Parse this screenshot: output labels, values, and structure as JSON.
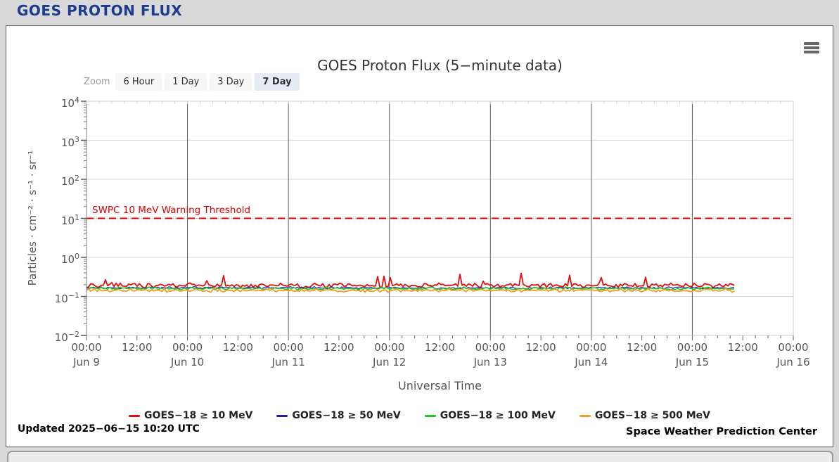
{
  "page": {
    "header_title": "GOES PROTON FLUX",
    "header_color": "#1c3d8f"
  },
  "toolbar": {
    "zoom_label": "Zoom",
    "zoom_buttons": [
      {
        "label": "6 Hour",
        "selected": false
      },
      {
        "label": "1 Day",
        "selected": false
      },
      {
        "label": "3 Day",
        "selected": false
      },
      {
        "label": "7 Day",
        "selected": true
      }
    ],
    "menu_icon": "hamburger-export-menu"
  },
  "chart_data": {
    "type": "line",
    "title": "GOES Proton Flux (5−minute data)",
    "xlabel": "Universal Time",
    "ylabel": "Particles · cm⁻² · s⁻¹ · sr⁻¹",
    "y_axis": {
      "scale": "log",
      "min_exp": -2,
      "max_exp": 4,
      "tick_exponents": [
        4,
        3,
        2,
        1,
        0,
        -1,
        -2
      ],
      "ylim": [
        0.01,
        10000
      ]
    },
    "x_axis": {
      "start": "Jun 9 00:00 UTC",
      "end": "Jun 16 00:00 UTC",
      "range_days": 7,
      "major_tick_hours": 12,
      "minor_tick_hours": 3,
      "time_labels": [
        "00:00",
        "12:00",
        "00:00",
        "12:00",
        "00:00",
        "12:00",
        "00:00",
        "12:00",
        "00:00",
        "12:00",
        "00:00",
        "12:00",
        "00:00",
        "12:00",
        "00:00"
      ],
      "date_labels": [
        "Jun 9",
        "Jun 10",
        "Jun 11",
        "Jun 12",
        "Jun 13",
        "Jun 14",
        "Jun 15",
        "Jun 16"
      ]
    },
    "grid": {
      "horizontal": true,
      "vertical_at_midnight": true
    },
    "threshold": {
      "value": 10,
      "label": "SWPC 10 MeV Warning Threshold",
      "color": "#dd0000",
      "style": "dashed"
    },
    "data_end_day_offset": 6.43,
    "series": [
      {
        "name": "GOES−18 ≥ 10 MeV",
        "color": "#e01010",
        "approx_flux": 0.19,
        "flux_range": [
          0.14,
          0.38
        ],
        "base_log": -0.72,
        "noise_log": 0.07,
        "spikes": true,
        "spike_log": 0.22
      },
      {
        "name": "GOES−18 ≥ 50 MeV",
        "color": "#2020b0",
        "approx_flux": 0.165,
        "flux_range": [
          0.14,
          0.2
        ],
        "base_log": -0.78,
        "noise_log": 0.035,
        "spikes": false,
        "spike_log": 0
      },
      {
        "name": "GOES−18 ≥ 100 MeV",
        "color": "#22c422",
        "approx_flux": 0.158,
        "flux_range": [
          0.12,
          0.2
        ],
        "base_log": -0.8,
        "noise_log": 0.045,
        "spikes": false,
        "spike_log": 0
      },
      {
        "name": "GOES−18 ≥ 500 MeV",
        "color": "#f0a028",
        "approx_flux": 0.145,
        "flux_range": [
          0.1,
          0.18
        ],
        "base_log": -0.845,
        "noise_log": 0.055,
        "spikes": false,
        "spike_log": 0
      }
    ],
    "legend_position": "bottom-center"
  },
  "footer": {
    "updated": "Updated 2025−06−15 10:20 UTC",
    "source": "Space Weather Prediction Center"
  }
}
